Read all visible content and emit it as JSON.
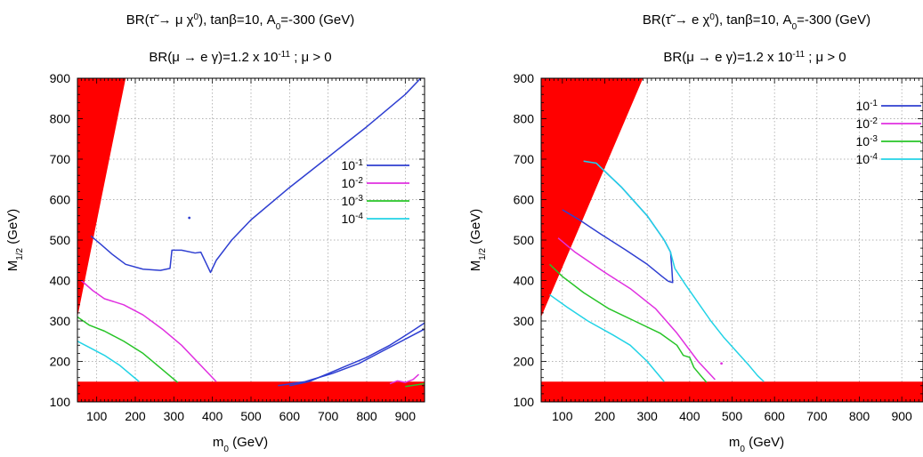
{
  "chart_data": [
    {
      "type": "line",
      "title_line1": {
        "a": "BR(τ̃ → μ χ",
        "sup": "0",
        "b": "), tanβ=10, A",
        "sub": "0",
        "c": "=-300 (GeV)"
      },
      "title_line2": {
        "a": "BR(μ → e γ)=1.2 x 10",
        "sup": "-11",
        "b": " ; μ > 0"
      },
      "xlabel": {
        "a": "m",
        "sub": "0",
        "b": " (GeV)"
      },
      "ylabel": {
        "a": "M",
        "sub": "1/2",
        "b": " (GeV)"
      },
      "xlim": [
        50,
        950
      ],
      "ylim": [
        100,
        900
      ],
      "xticks": [
        100,
        200,
        300,
        400,
        500,
        600,
        700,
        800,
        900
      ],
      "yticks": [
        100,
        200,
        300,
        400,
        500,
        600,
        700,
        800,
        900
      ],
      "grid": true,
      "legend_position": "middle-right",
      "excluded_color": "#ff0000",
      "excluded_regions": [
        [
          [
            50,
            310
          ],
          [
            50,
            900
          ],
          [
            175,
            900
          ]
        ],
        [
          [
            50,
            100
          ],
          [
            50,
            150
          ],
          [
            950,
            150
          ],
          [
            950,
            100
          ]
        ]
      ],
      "series": [
        {
          "name": {
            "a": "10",
            "sup": "-1"
          },
          "color": "#2f3fd1",
          "segments": [
            [
              [
                85,
                510
              ],
              [
                110,
                490
              ],
              [
                140,
                465
              ],
              [
                175,
                440
              ],
              [
                220,
                428
              ],
              [
                265,
                425
              ],
              [
                290,
                430
              ],
              [
                295,
                475
              ],
              [
                320,
                475
              ],
              [
                355,
                468
              ],
              [
                370,
                470
              ],
              [
                385,
                440
              ],
              [
                395,
                420
              ],
              [
                410,
                450
              ],
              [
                450,
                500
              ],
              [
                500,
                550
              ],
              [
                600,
                630
              ],
              [
                700,
                705
              ],
              [
                800,
                780
              ],
              [
                900,
                860
              ],
              [
                940,
                900
              ]
            ],
            [
              [
                600,
                140
              ],
              [
                650,
                150
              ],
              [
                700,
                170
              ],
              [
                750,
                190
              ],
              [
                800,
                210
              ],
              [
                860,
                240
              ],
              [
                910,
                270
              ],
              [
                950,
                295
              ]
            ],
            [
              [
                570,
                140
              ],
              [
                640,
                150
              ],
              [
                710,
                170
              ],
              [
                780,
                195
              ],
              [
                840,
                225
              ],
              [
                900,
                255
              ],
              [
                950,
                280
              ]
            ]
          ]
        },
        {
          "name": {
            "a": "10",
            "sup": "-2"
          },
          "color": "#e030e0",
          "segments": [
            [
              [
                60,
                400
              ],
              [
                90,
                375
              ],
              [
                120,
                355
              ],
              [
                170,
                340
              ],
              [
                220,
                315
              ],
              [
                270,
                280
              ],
              [
                320,
                240
              ],
              [
                360,
                200
              ],
              [
                410,
                150
              ]
            ],
            [
              [
                860,
                145
              ],
              [
                880,
                152
              ],
              [
                900,
                148
              ],
              [
                920,
                155
              ],
              [
                935,
                168
              ]
            ]
          ]
        },
        {
          "name": {
            "a": "10",
            "sup": "-3"
          },
          "color": "#27c427",
          "segments": [
            [
              [
                50,
                310
              ],
              [
                80,
                290
              ],
              [
                120,
                275
              ],
              [
                170,
                250
              ],
              [
                220,
                220
              ],
              [
                270,
                180
              ],
              [
                310,
                148
              ]
            ],
            [
              [
                900,
                138
              ],
              [
                950,
                145
              ]
            ]
          ]
        },
        {
          "name": {
            "a": "10",
            "sup": "-4"
          },
          "color": "#22d3e6",
          "segments": [
            [
              [
                50,
                250
              ],
              [
                80,
                235
              ],
              [
                120,
                215
              ],
              [
                160,
                190
              ],
              [
                210,
                150
              ]
            ]
          ]
        }
      ],
      "markers": [
        {
          "series": 0,
          "x": 340,
          "y": 555
        }
      ]
    },
    {
      "type": "line",
      "title_line1": {
        "a": "BR(τ̃ →  e χ",
        "sup": "0",
        "b": "),  tanβ=10, A",
        "sub": "0",
        "c": "=-300 (GeV)"
      },
      "title_line2": {
        "a": "BR(μ → e γ)=1.2 x 10",
        "sup": "-11",
        "b": " ; μ > 0"
      },
      "xlabel": {
        "a": "m",
        "sub": "0",
        "b": " (GeV)"
      },
      "ylabel": {
        "a": "M",
        "sub": "1/2",
        "b": " (GeV)"
      },
      "xlim": [
        50,
        950
      ],
      "ylim": [
        100,
        900
      ],
      "xticks": [
        100,
        200,
        300,
        400,
        500,
        600,
        700,
        800,
        900
      ],
      "yticks": [
        100,
        200,
        300,
        400,
        500,
        600,
        700,
        800,
        900
      ],
      "grid": true,
      "legend_position": "top-right",
      "excluded_color": "#ff0000",
      "excluded_regions": [
        [
          [
            50,
            310
          ],
          [
            50,
            900
          ],
          [
            290,
            900
          ]
        ],
        [
          [
            50,
            100
          ],
          [
            50,
            150
          ],
          [
            950,
            150
          ],
          [
            950,
            100
          ]
        ]
      ],
      "series": [
        {
          "name": {
            "a": "10",
            "sup": "-1"
          },
          "color": "#2f3fd1",
          "segments": [
            [
              [
                100,
                575
              ],
              [
                140,
                550
              ],
              [
                190,
                515
              ],
              [
                250,
                475
              ],
              [
                300,
                440
              ],
              [
                335,
                410
              ],
              [
                350,
                398
              ],
              [
                360,
                395
              ],
              [
                358,
                430
              ],
              [
                355,
                470
              ],
              [
                340,
                500
              ],
              [
                300,
                560
              ],
              [
                240,
                630
              ],
              [
                200,
                670
              ],
              [
                180,
                690
              ],
              [
                150,
                695
              ]
            ]
          ]
        },
        {
          "name": {
            "a": "10",
            "sup": "-2"
          },
          "color": "#e030e0",
          "segments": [
            [
              [
                90,
                505
              ],
              [
                130,
                470
              ],
              [
                200,
                420
              ],
              [
                260,
                380
              ],
              [
                320,
                330
              ],
              [
                370,
                270
              ],
              [
                420,
                200
              ],
              [
                460,
                155
              ]
            ]
          ]
        },
        {
          "name": {
            "a": "10",
            "sup": "-3"
          },
          "color": "#27c427",
          "segments": [
            [
              [
                70,
                440
              ],
              [
                100,
                410
              ],
              [
                150,
                370
              ],
              [
                210,
                330
              ],
              [
                270,
                300
              ],
              [
                330,
                270
              ],
              [
                370,
                240
              ],
              [
                385,
                215
              ],
              [
                400,
                210
              ],
              [
                410,
                185
              ],
              [
                430,
                160
              ],
              [
                440,
                148
              ]
            ]
          ]
        },
        {
          "name": {
            "a": "10",
            "sup": "-4"
          },
          "color": "#22d3e6",
          "segments": [
            [
              [
                70,
                365
              ],
              [
                110,
                335
              ],
              [
                160,
                300
              ],
              [
                220,
                265
              ],
              [
                260,
                240
              ],
              [
                300,
                200
              ],
              [
                340,
                150
              ]
            ],
            [
              [
                150,
                695
              ],
              [
                180,
                690
              ],
              [
                200,
                670
              ],
              [
                240,
                630
              ],
              [
                300,
                560
              ],
              [
                340,
                500
              ],
              [
                355,
                470
              ],
              [
                365,
                430
              ],
              [
                390,
                390
              ],
              [
                420,
                345
              ],
              [
                450,
                300
              ],
              [
                480,
                260
              ],
              [
                510,
                225
              ],
              [
                540,
                190
              ],
              [
                560,
                165
              ],
              [
                575,
                150
              ]
            ]
          ]
        }
      ],
      "markers": [
        {
          "series": 1,
          "x": 475,
          "y": 195
        }
      ]
    }
  ]
}
